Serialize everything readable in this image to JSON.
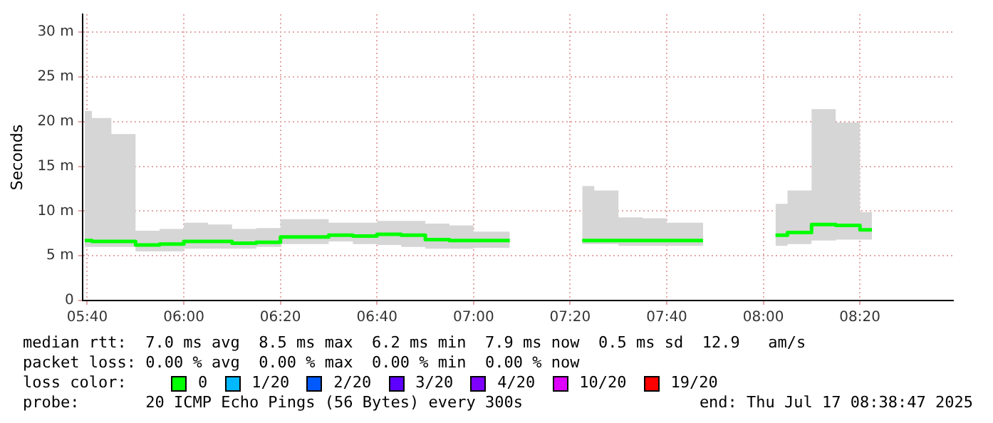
{
  "chart_data": {
    "type": "step",
    "ylabel": "Seconds",
    "x": [
      5.658,
      5.708,
      5.792,
      5.875,
      5.958,
      6.042,
      6.125,
      6.208,
      6.292,
      6.375,
      6.458,
      6.542,
      6.625,
      6.708,
      6.792,
      6.875,
      6.958,
      7.042,
      7.125,
      7.208,
      7.292,
      7.375,
      7.458,
      7.542,
      7.625,
      7.708,
      7.792,
      7.875,
      7.958,
      8.042,
      8.125,
      8.208,
      8.292,
      8.375
    ],
    "series": [
      {
        "color": "#00ff00",
        "values": [
          6.7,
          6.6,
          6.6,
          6.2,
          6.3,
          6.6,
          6.6,
          6.4,
          6.5,
          7.1,
          7.1,
          7.3,
          7.2,
          7.4,
          7.3,
          6.8,
          6.7,
          6.7,
          6.7,
          null,
          null,
          6.7,
          6.7,
          6.7,
          6.7,
          6.7,
          6.7,
          null,
          null,
          7.3,
          7.6,
          8.5,
          8.4,
          7.9
        ],
        "lower": [
          6.0,
          6.0,
          6.0,
          5.5,
          5.5,
          5.8,
          5.8,
          5.8,
          6.0,
          6.3,
          6.3,
          6.6,
          6.3,
          6.2,
          6.0,
          5.8,
          5.8,
          5.9,
          5.9,
          null,
          null,
          6.3,
          6.3,
          6.1,
          6.1,
          6.1,
          6.1,
          null,
          null,
          6.1,
          6.3,
          6.7,
          6.8,
          6.8
        ],
        "upper": [
          21.2,
          20.4,
          18.6,
          7.8,
          8.0,
          8.7,
          8.5,
          8.0,
          8.1,
          9.1,
          9.1,
          8.7,
          8.7,
          8.9,
          8.9,
          8.6,
          8.4,
          7.7,
          7.7,
          null,
          null,
          12.8,
          12.3,
          9.3,
          9.2,
          8.7,
          8.7,
          null,
          null,
          10.8,
          12.3,
          21.4,
          19.9,
          9.9
        ]
      }
    ],
    "xlim": [
      5.65,
      8.655
    ],
    "xticks": [
      {
        "value": 5.6667,
        "label": "05:40"
      },
      {
        "value": 6,
        "label": "06:00"
      },
      {
        "value": 6.3333,
        "label": "06:20"
      },
      {
        "value": 6.6667,
        "label": "06:40"
      },
      {
        "value": 7,
        "label": "07:00"
      },
      {
        "value": 7.3333,
        "label": "07:20"
      },
      {
        "value": 7.6667,
        "label": "07:40"
      },
      {
        "value": 8,
        "label": "08:00"
      },
      {
        "value": 8.3333,
        "label": "08:20"
      }
    ],
    "ylim": [
      0,
      32
    ],
    "yticks": [
      0,
      {
        "value": 5,
        "label": "5 m"
      },
      {
        "value": 10,
        "label": "10 m"
      },
      {
        "value": 15,
        "label": "15 m"
      },
      {
        "value": 20,
        "label": "20 m"
      },
      {
        "value": 25,
        "label": "25 m"
      },
      {
        "value": 30,
        "label": "30 m"
      }
    ],
    "grid": true,
    "legend": false,
    "marker": "none",
    "annotations": [
      "median rtt:  7.0 ms avg  8.5 ms max  6.2 ms min  7.9 ms now  0.5 ms sd  12.9   am/s",
      "packet loss: 0.00 % avg  0.00 % max  0.00 % min  0.00 % now",
      "loss color:",
      "0",
      "1/20",
      "2/20",
      "3/20",
      "4/20",
      "10/20",
      "19/20",
      "probe:       20 ICMP Echo Pings (56 Bytes) every 300s",
      "end: Thu Jul 17 08:38:47 2025"
    ]
  }
}
